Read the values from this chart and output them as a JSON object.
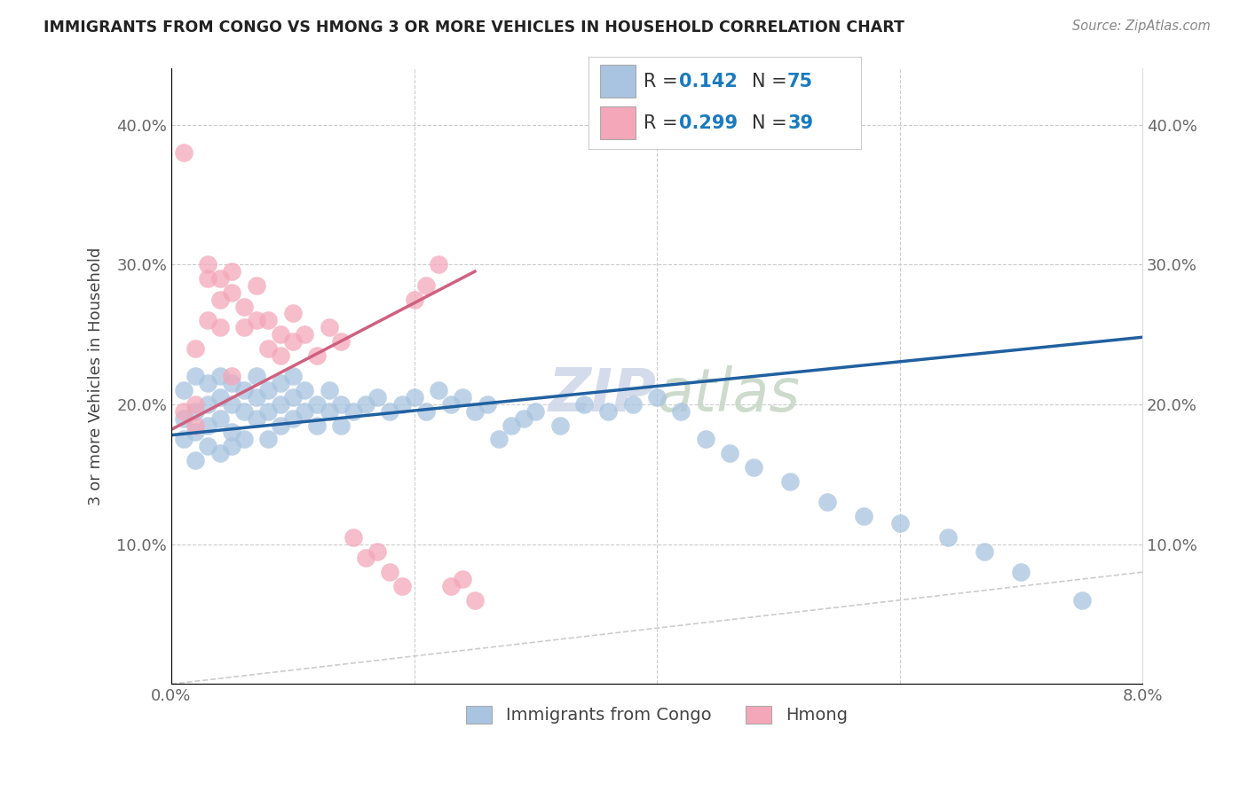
{
  "title": "IMMIGRANTS FROM CONGO VS HMONG 3 OR MORE VEHICLES IN HOUSEHOLD CORRELATION CHART",
  "source": "Source: ZipAtlas.com",
  "ylabel": "3 or more Vehicles in Household",
  "xlim": [
    0.0,
    0.08
  ],
  "ylim": [
    0.0,
    0.44
  ],
  "xticks": [
    0.0,
    0.02,
    0.04,
    0.06,
    0.08
  ],
  "yticks": [
    0.0,
    0.1,
    0.2,
    0.3,
    0.4
  ],
  "congo_color": "#a8c4e0",
  "hmong_color": "#f4a7b9",
  "congo_line_color": "#2060a0",
  "hmong_line_color": "#d06080",
  "diagonal_color": "#cccccc",
  "background_color": "#ffffff",
  "legend_labels": [
    "Immigrants from Congo",
    "Hmong"
  ],
  "congo_scatter_x": [
    0.001,
    0.001,
    0.001,
    0.002,
    0.002,
    0.002,
    0.002,
    0.003,
    0.003,
    0.003,
    0.003,
    0.004,
    0.004,
    0.004,
    0.004,
    0.005,
    0.005,
    0.005,
    0.005,
    0.006,
    0.006,
    0.006,
    0.007,
    0.007,
    0.007,
    0.008,
    0.008,
    0.008,
    0.009,
    0.009,
    0.009,
    0.01,
    0.01,
    0.01,
    0.011,
    0.011,
    0.012,
    0.012,
    0.013,
    0.013,
    0.014,
    0.014,
    0.015,
    0.016,
    0.017,
    0.018,
    0.019,
    0.02,
    0.021,
    0.022,
    0.023,
    0.024,
    0.025,
    0.026,
    0.027,
    0.028,
    0.029,
    0.03,
    0.032,
    0.034,
    0.036,
    0.038,
    0.04,
    0.042,
    0.044,
    0.046,
    0.048,
    0.051,
    0.054,
    0.057,
    0.06,
    0.064,
    0.067,
    0.07,
    0.075
  ],
  "congo_scatter_y": [
    0.175,
    0.19,
    0.21,
    0.18,
    0.195,
    0.22,
    0.16,
    0.185,
    0.2,
    0.215,
    0.17,
    0.19,
    0.205,
    0.22,
    0.165,
    0.18,
    0.2,
    0.215,
    0.17,
    0.195,
    0.21,
    0.175,
    0.19,
    0.205,
    0.22,
    0.175,
    0.195,
    0.21,
    0.185,
    0.2,
    0.215,
    0.19,
    0.205,
    0.22,
    0.195,
    0.21,
    0.185,
    0.2,
    0.195,
    0.21,
    0.185,
    0.2,
    0.195,
    0.2,
    0.205,
    0.195,
    0.2,
    0.205,
    0.195,
    0.21,
    0.2,
    0.205,
    0.195,
    0.2,
    0.175,
    0.185,
    0.19,
    0.195,
    0.185,
    0.2,
    0.195,
    0.2,
    0.205,
    0.195,
    0.175,
    0.165,
    0.155,
    0.145,
    0.13,
    0.12,
    0.115,
    0.105,
    0.095,
    0.08,
    0.06
  ],
  "hmong_scatter_x": [
    0.001,
    0.001,
    0.002,
    0.002,
    0.002,
    0.003,
    0.003,
    0.003,
    0.004,
    0.004,
    0.004,
    0.005,
    0.005,
    0.005,
    0.006,
    0.006,
    0.007,
    0.007,
    0.008,
    0.008,
    0.009,
    0.009,
    0.01,
    0.01,
    0.011,
    0.012,
    0.013,
    0.014,
    0.015,
    0.016,
    0.017,
    0.018,
    0.019,
    0.02,
    0.021,
    0.022,
    0.023,
    0.024,
    0.025
  ],
  "hmong_scatter_y": [
    0.195,
    0.38,
    0.185,
    0.2,
    0.24,
    0.29,
    0.3,
    0.26,
    0.275,
    0.29,
    0.255,
    0.295,
    0.28,
    0.22,
    0.255,
    0.27,
    0.26,
    0.285,
    0.24,
    0.26,
    0.25,
    0.235,
    0.245,
    0.265,
    0.25,
    0.235,
    0.255,
    0.245,
    0.105,
    0.09,
    0.095,
    0.08,
    0.07,
    0.275,
    0.285,
    0.3,
    0.07,
    0.075,
    0.06
  ],
  "congo_line_x": [
    0.0,
    0.08
  ],
  "congo_line_y": [
    0.178,
    0.248
  ],
  "hmong_line_x": [
    0.0,
    0.025
  ],
  "hmong_line_y": [
    0.182,
    0.295
  ]
}
